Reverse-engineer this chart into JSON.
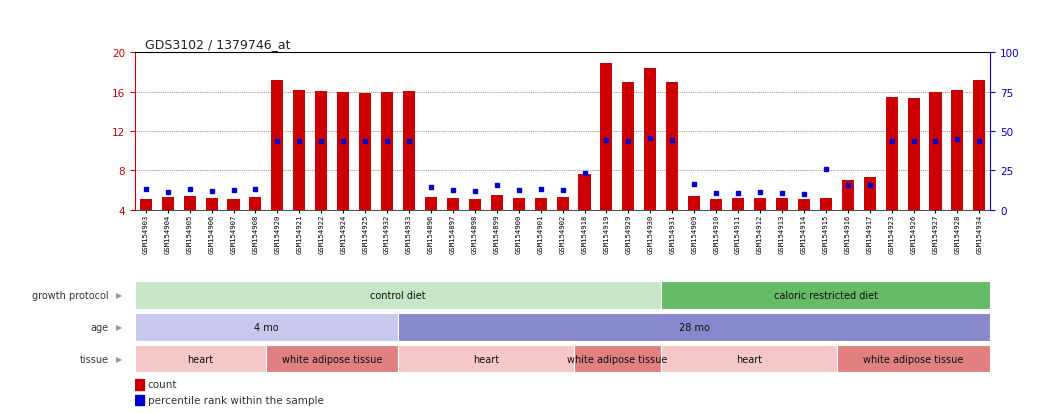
{
  "title": "GDS3102 / 1379746_at",
  "samples": [
    "GSM154903",
    "GSM154904",
    "GSM154905",
    "GSM154906",
    "GSM154907",
    "GSM154908",
    "GSM154920",
    "GSM154921",
    "GSM154922",
    "GSM154924",
    "GSM154925",
    "GSM154932",
    "GSM154933",
    "GSM154896",
    "GSM154897",
    "GSM154898",
    "GSM154899",
    "GSM154900",
    "GSM154901",
    "GSM154902",
    "GSM154918",
    "GSM154919",
    "GSM154929",
    "GSM154930",
    "GSM154931",
    "GSM154909",
    "GSM154910",
    "GSM154911",
    "GSM154912",
    "GSM154913",
    "GSM154914",
    "GSM154915",
    "GSM154916",
    "GSM154917",
    "GSM154923",
    "GSM154926",
    "GSM154927",
    "GSM154928",
    "GSM154934"
  ],
  "red_values": [
    5.1,
    5.3,
    5.4,
    5.2,
    5.1,
    5.3,
    17.2,
    16.2,
    16.1,
    16.0,
    15.9,
    16.0,
    16.1,
    5.3,
    5.2,
    5.1,
    5.5,
    5.2,
    5.2,
    5.3,
    7.6,
    18.9,
    17.0,
    18.4,
    17.0,
    5.4,
    5.1,
    5.2,
    5.2,
    5.2,
    5.1,
    5.2,
    7.0,
    7.3,
    15.5,
    15.4,
    16.0,
    16.2,
    17.2
  ],
  "blue_values": [
    6.1,
    5.8,
    6.1,
    5.9,
    6.0,
    6.1,
    11.0,
    11.0,
    11.0,
    11.0,
    11.0,
    11.0,
    11.0,
    6.3,
    6.0,
    5.9,
    6.5,
    6.0,
    6.1,
    6.0,
    7.7,
    11.1,
    11.0,
    11.3,
    11.1,
    6.6,
    5.7,
    5.7,
    5.8,
    5.7,
    5.6,
    8.1,
    6.5,
    6.5,
    11.0,
    11.0,
    11.0,
    11.2,
    11.0
  ],
  "ylim_left": [
    4,
    20
  ],
  "ylim_right": [
    0,
    100
  ],
  "yticks_left": [
    4,
    8,
    12,
    16,
    20
  ],
  "yticks_right": [
    0,
    25,
    50,
    75,
    100
  ],
  "bar_color": "#cc0000",
  "dot_color": "#0000cc",
  "left_axis_color": "#cc0000",
  "right_axis_color": "#0000cc",
  "group_protocol": [
    {
      "label": "control diet",
      "start": 0,
      "end": 24,
      "color": "#c8e6c8"
    },
    {
      "label": "caloric restricted diet",
      "start": 24,
      "end": 39,
      "color": "#66bb66"
    }
  ],
  "group_age": [
    {
      "label": "4 mo",
      "start": 0,
      "end": 12,
      "color": "#c8c8ee"
    },
    {
      "label": "28 mo",
      "start": 12,
      "end": 39,
      "color": "#8888cc"
    }
  ],
  "group_tissue": [
    {
      "label": "heart",
      "start": 0,
      "end": 6,
      "color": "#f5c8c8"
    },
    {
      "label": "white adipose tissue",
      "start": 6,
      "end": 12,
      "color": "#e08080"
    },
    {
      "label": "heart",
      "start": 12,
      "end": 20,
      "color": "#f5c8c8"
    },
    {
      "label": "white adipose tissue",
      "start": 20,
      "end": 24,
      "color": "#e08080"
    },
    {
      "label": "heart",
      "start": 24,
      "end": 32,
      "color": "#f5c8c8"
    },
    {
      "label": "white adipose tissue",
      "start": 32,
      "end": 39,
      "color": "#e08080"
    }
  ],
  "bar_width": 0.55,
  "row_labels": [
    "growth protocol",
    "age",
    "tissue"
  ],
  "fig_width": 10.37,
  "fig_height": 4.14,
  "dpi": 100
}
